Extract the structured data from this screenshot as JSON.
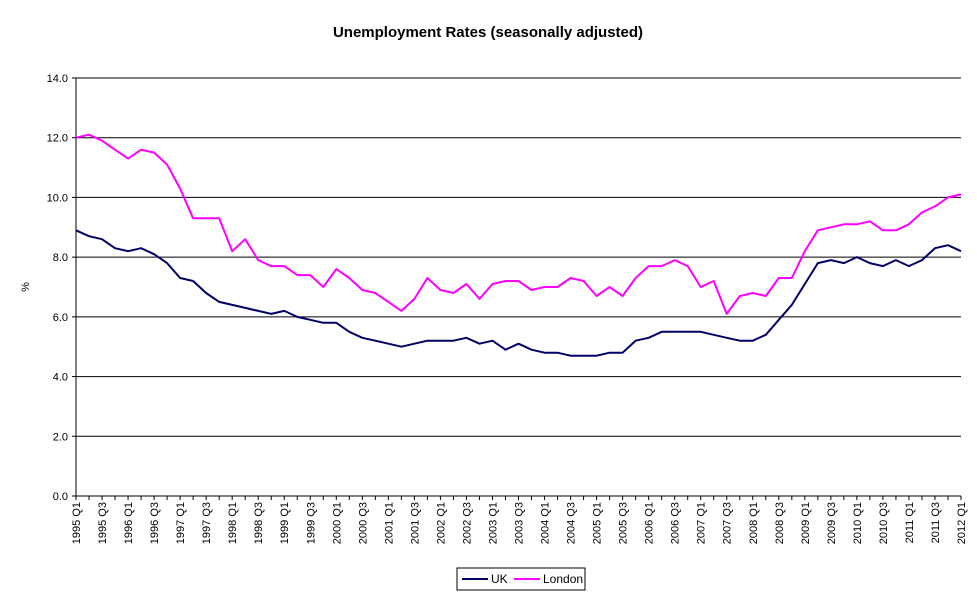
{
  "chart_data": {
    "type": "line",
    "title": "Unemployment Rates (seasonally adjusted)",
    "xlabel": "",
    "ylabel": "%",
    "ylim": [
      0,
      14
    ],
    "yticks": [
      "0.0",
      "2.0",
      "4.0",
      "6.0",
      "8.0",
      "10.0",
      "12.0",
      "14.0"
    ],
    "grid": "horizontal",
    "legend_position": "bottom",
    "categories": [
      "1995 Q1",
      "1995 Q2",
      "1995 Q3",
      "1995 Q4",
      "1996 Q1",
      "1996 Q2",
      "1996 Q3",
      "1996 Q4",
      "1997 Q1",
      "1997 Q2",
      "1997 Q3",
      "1997 Q4",
      "1998 Q1",
      "1998 Q2",
      "1998 Q3",
      "1998 Q4",
      "1999 Q1",
      "1999 Q2",
      "1999 Q3",
      "1999 Q4",
      "2000 Q1",
      "2000 Q2",
      "2000 Q3",
      "2000 Q4",
      "2001 Q1",
      "2001 Q2",
      "2001 Q3",
      "2001 Q4",
      "2002 Q1",
      "2002 Q2",
      "2002 Q3",
      "2002 Q4",
      "2003 Q1",
      "2003 Q2",
      "2003 Q3",
      "2003 Q4",
      "2004 Q1",
      "2004 Q2",
      "2004 Q3",
      "2004 Q4",
      "2005 Q1",
      "2005 Q2",
      "2005 Q3",
      "2005 Q4",
      "2006 Q1",
      "2006 Q2",
      "2006 Q3",
      "2006 Q4",
      "2007 Q1",
      "2007 Q2",
      "2007 Q3",
      "2007 Q4",
      "2008 Q1",
      "2008 Q2",
      "2008 Q3",
      "2008 Q4",
      "2009 Q1",
      "2009 Q2",
      "2009 Q3",
      "2009 Q4",
      "2010 Q1",
      "2010 Q2",
      "2010 Q3",
      "2010 Q4",
      "2011 Q1",
      "2011 Q2",
      "2011 Q3",
      "2011 Q4",
      "2012 Q1"
    ],
    "tick_labels": [
      "1995 Q1",
      "1995 Q3",
      "1996 Q1",
      "1996 Q3",
      "1997 Q1",
      "1997 Q3",
      "1998 Q1",
      "1998 Q3",
      "1999 Q1",
      "1999 Q3",
      "2000 Q1",
      "2000 Q3",
      "2001 Q1",
      "2001 Q3",
      "2002 Q1",
      "2002 Q3",
      "2003 Q1",
      "2003 Q3",
      "2004 Q1",
      "2004 Q3",
      "2005 Q1",
      "2005 Q3",
      "2006 Q1",
      "2006 Q3",
      "2007 Q1",
      "2007 Q3",
      "2008 Q1",
      "2008 Q3",
      "2009 Q1",
      "2009 Q3",
      "2010 Q1",
      "2010 Q3",
      "2011 Q1",
      "2011 Q3",
      "2012 Q1"
    ],
    "series": [
      {
        "name": "UK",
        "color": "#000066",
        "values": [
          8.9,
          8.7,
          8.6,
          8.3,
          8.2,
          8.3,
          8.1,
          7.8,
          7.3,
          7.2,
          6.8,
          6.5,
          6.4,
          6.3,
          6.2,
          6.1,
          6.2,
          6.0,
          5.9,
          5.8,
          5.8,
          5.5,
          5.3,
          5.2,
          5.1,
          5.0,
          5.1,
          5.2,
          5.2,
          5.2,
          5.3,
          5.1,
          5.2,
          4.9,
          5.1,
          4.9,
          4.8,
          4.8,
          4.7,
          4.7,
          4.7,
          4.8,
          4.8,
          5.2,
          5.3,
          5.5,
          5.5,
          5.5,
          5.5,
          5.4,
          5.3,
          5.2,
          5.2,
          5.4,
          5.9,
          6.4,
          7.1,
          7.8,
          7.9,
          7.8,
          8.0,
          7.8,
          7.7,
          7.9,
          7.7,
          7.9,
          8.3,
          8.4,
          8.2
        ]
      },
      {
        "name": "London",
        "color": "#ff00ff",
        "values": [
          12.0,
          12.1,
          11.9,
          11.6,
          11.3,
          11.6,
          11.5,
          11.1,
          10.3,
          9.3,
          9.3,
          9.3,
          8.2,
          8.6,
          7.9,
          7.7,
          7.7,
          7.4,
          7.4,
          7.0,
          7.6,
          7.3,
          6.9,
          6.8,
          6.5,
          6.2,
          6.6,
          7.3,
          6.9,
          6.8,
          7.1,
          6.6,
          7.1,
          7.2,
          7.2,
          6.9,
          7.0,
          7.0,
          7.3,
          7.2,
          6.7,
          7.0,
          6.7,
          7.3,
          7.7,
          7.7,
          7.9,
          7.7,
          7.0,
          7.2,
          6.1,
          6.7,
          6.8,
          6.7,
          7.3,
          7.3,
          8.2,
          8.9,
          9.0,
          9.1,
          9.1,
          9.2,
          8.9,
          8.9,
          9.1,
          9.5,
          9.7,
          10.0,
          10.1
        ]
      }
    ]
  }
}
